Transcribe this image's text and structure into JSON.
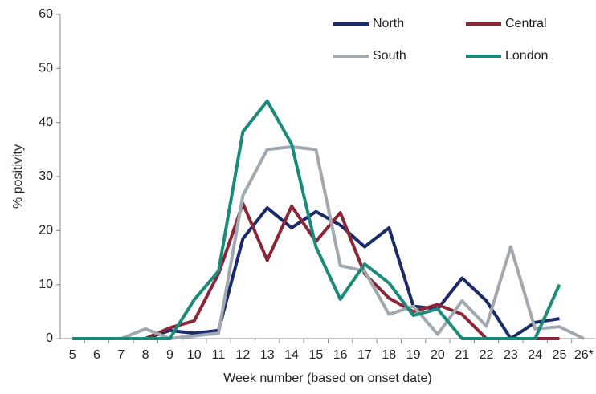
{
  "chart_data": {
    "type": "line",
    "x_label": "Week number (based on onset date)",
    "y_label": "% positivity",
    "categories": [
      "5",
      "6",
      "7",
      "8",
      "9",
      "10",
      "11",
      "12",
      "13",
      "14",
      "15",
      "16",
      "17",
      "18",
      "19",
      "20",
      "21",
      "22",
      "23",
      "24",
      "25",
      "26*"
    ],
    "series": [
      {
        "name": "North",
        "color": "#1b2a6b",
        "values": [
          0,
          0,
          0,
          0,
          1.5,
          1,
          1.5,
          18.5,
          24.2,
          20.5,
          23.5,
          21,
          17,
          20.5,
          6,
          5.5,
          11.2,
          7,
          0,
          3,
          3.7,
          null
        ]
      },
      {
        "name": "Central",
        "color": "#8b2636",
        "values": [
          0,
          0,
          0,
          0,
          2,
          3.3,
          12,
          25,
          14.5,
          24.5,
          18,
          23.3,
          12,
          7.5,
          5,
          6.3,
          4.5,
          0,
          null,
          0,
          0,
          null
        ]
      },
      {
        "name": "South",
        "color": "#a0a8b0",
        "values": [
          0,
          0,
          0,
          1.8,
          0,
          0.5,
          1,
          26.5,
          35,
          35.5,
          35,
          13.5,
          12.5,
          4.5,
          6,
          0.8,
          7,
          2.3,
          17,
          1.8,
          2.2,
          0
        ]
      },
      {
        "name": "London",
        "color": "#1a8a7a",
        "values": [
          0,
          0,
          0,
          0,
          0,
          7.2,
          12.5,
          38.3,
          44,
          36,
          17,
          7.3,
          13.8,
          10.3,
          4.3,
          5.5,
          0,
          0,
          0,
          0,
          10,
          null
        ]
      }
    ],
    "ylim": [
      0,
      60
    ],
    "yticks": [
      0,
      10,
      20,
      30,
      40,
      50,
      60
    ],
    "grid": false
  }
}
